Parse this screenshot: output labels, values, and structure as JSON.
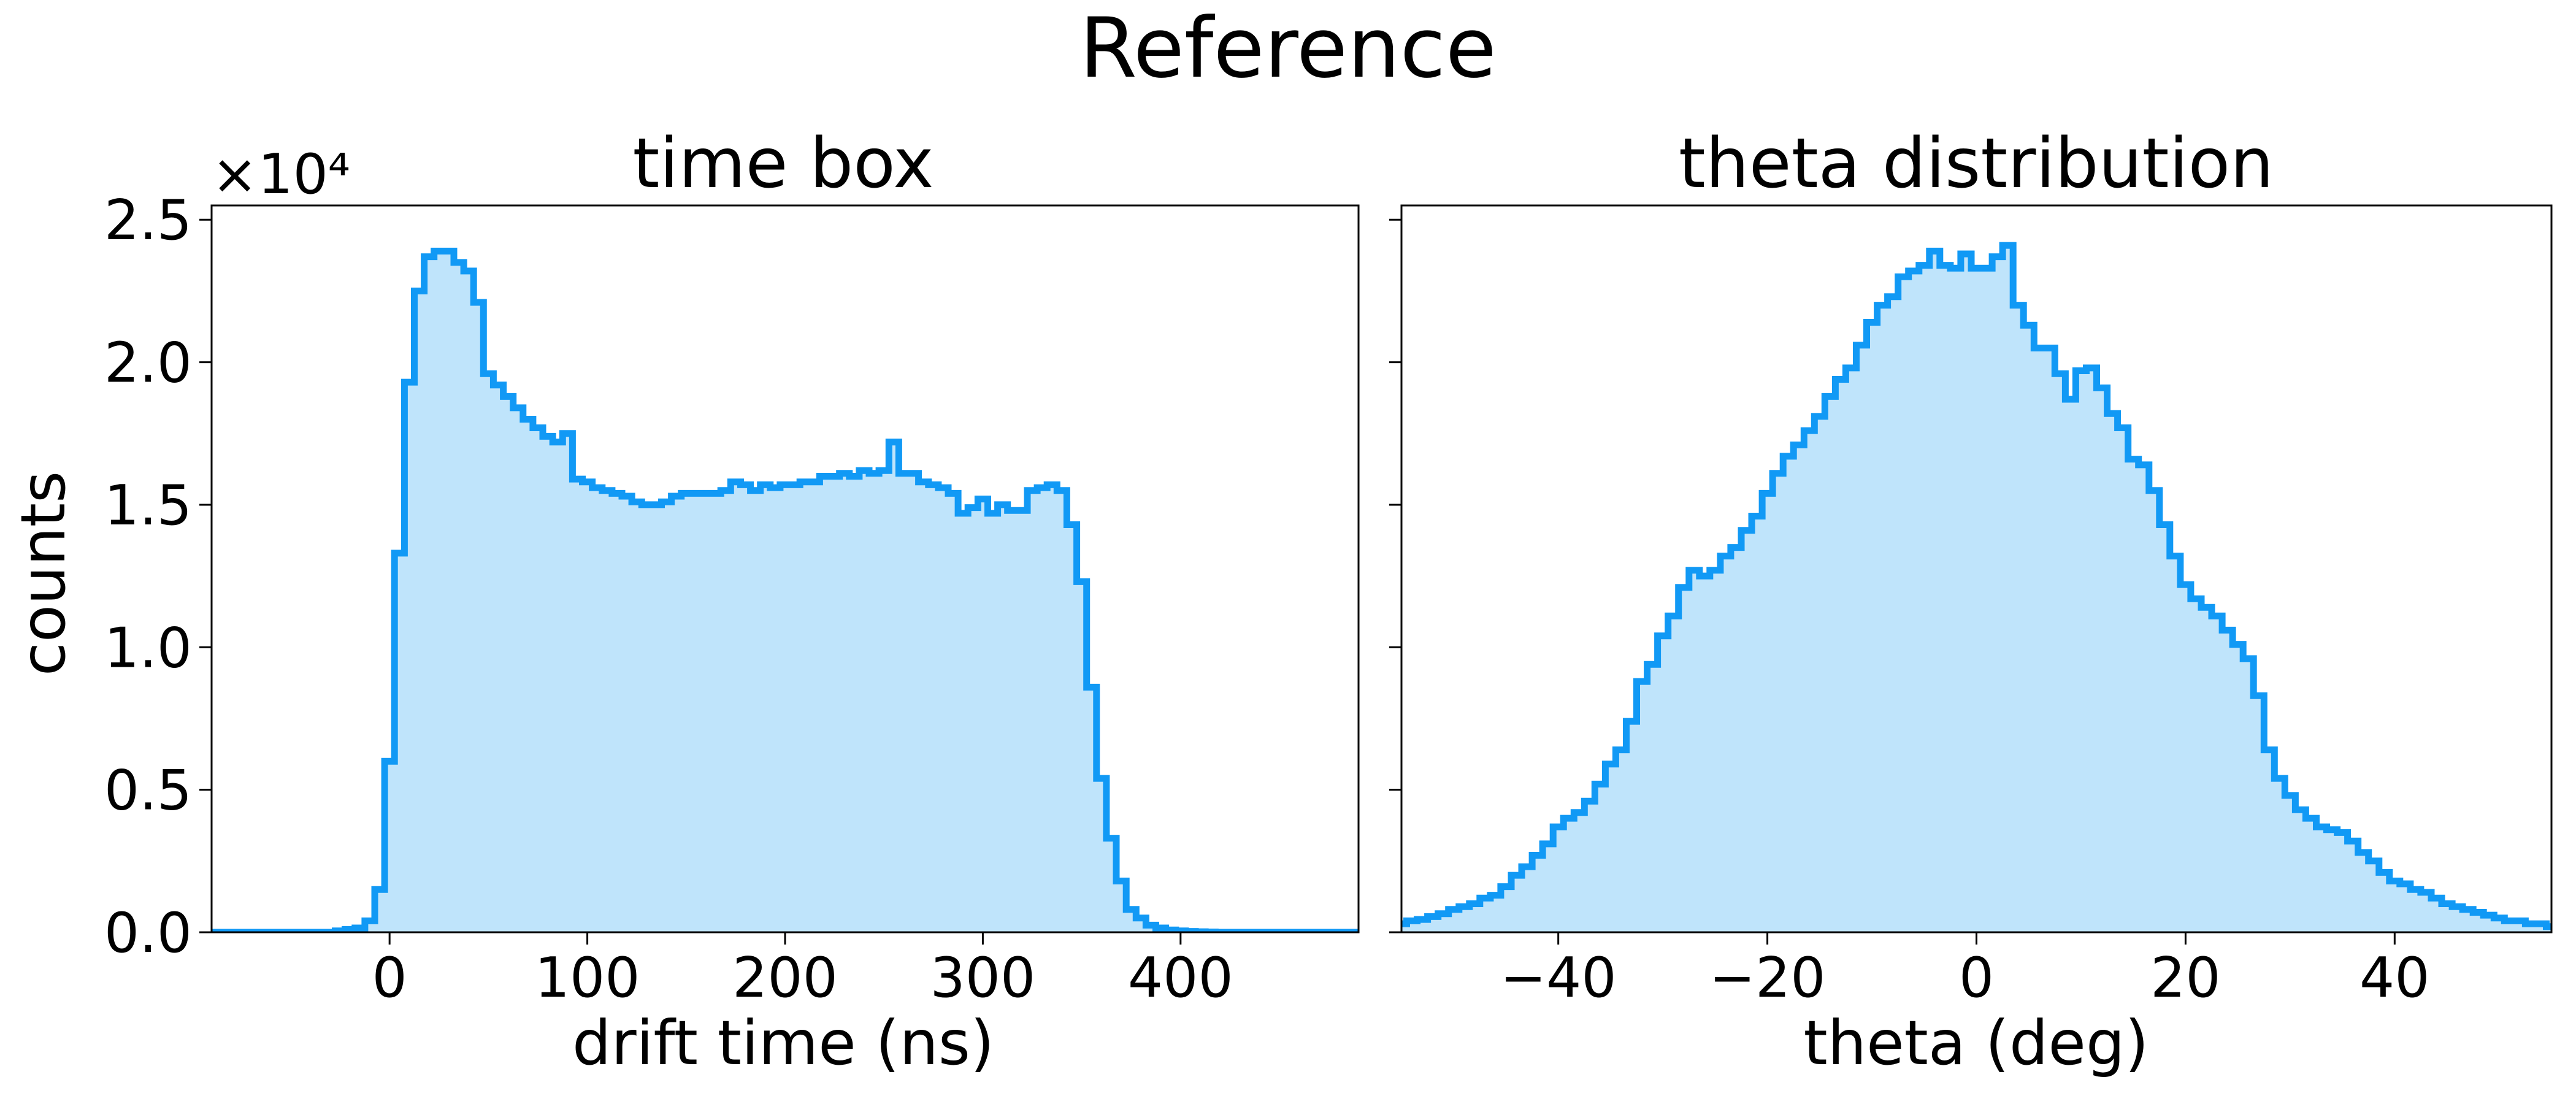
{
  "figure": {
    "suptitle": "Reference"
  },
  "colors": {
    "line": "#1199f5",
    "fill": "#bfe4fb",
    "axes": "#000000",
    "background": "#ffffff"
  },
  "chart_data": [
    {
      "type": "area",
      "title": "time box",
      "xlabel": "drift time (ns)",
      "ylabel": "counts",
      "offset_text": "×10⁴",
      "xlim": [
        -90,
        490
      ],
      "ylim": [
        0,
        25500
      ],
      "xticks": [
        0,
        100,
        200,
        300,
        400
      ],
      "xtick_labels": [
        "0",
        "100",
        "200",
        "300",
        "400"
      ],
      "yticks": [
        0,
        5000,
        10000,
        15000,
        20000,
        25000
      ],
      "ytick_labels": [
        "0.0",
        "0.5",
        "1.0",
        "1.5",
        "2.0",
        "2.5"
      ],
      "grid": false,
      "legend": false,
      "step": "mid",
      "bin_width": 5,
      "x": [
        -90,
        -85,
        -80,
        -75,
        -70,
        -65,
        -60,
        -55,
        -50,
        -45,
        -40,
        -35,
        -30,
        -25,
        -20,
        -15,
        -10,
        -5,
        0,
        5,
        10,
        15,
        20,
        25,
        30,
        35,
        40,
        45,
        50,
        55,
        60,
        65,
        70,
        75,
        80,
        85,
        90,
        95,
        100,
        105,
        110,
        115,
        120,
        125,
        130,
        135,
        140,
        145,
        150,
        155,
        160,
        165,
        170,
        175,
        180,
        185,
        190,
        195,
        200,
        205,
        210,
        215,
        220,
        225,
        230,
        235,
        240,
        245,
        250,
        255,
        260,
        265,
        270,
        275,
        280,
        285,
        290,
        295,
        300,
        305,
        310,
        315,
        320,
        325,
        330,
        335,
        340,
        345,
        350,
        355,
        360,
        365,
        370,
        375,
        380,
        385,
        390,
        395,
        400,
        405,
        410,
        415,
        420,
        425,
        430,
        435,
        440,
        445,
        450,
        455,
        460,
        465,
        470,
        475,
        480,
        485,
        490
      ],
      "y": [
        0,
        0,
        0,
        0,
        0,
        0,
        0,
        0,
        0,
        0,
        0,
        0,
        0,
        50,
        100,
        150,
        400,
        1500,
        6000,
        13300,
        19300,
        22500,
        23700,
        23900,
        23900,
        23500,
        23200,
        22100,
        19600,
        19200,
        18800,
        18400,
        18000,
        17700,
        17400,
        17200,
        17500,
        15900,
        15800,
        15600,
        15500,
        15400,
        15300,
        15100,
        15000,
        15000,
        15100,
        15300,
        15400,
        15400,
        15400,
        15400,
        15500,
        15800,
        15700,
        15500,
        15700,
        15600,
        15700,
        15700,
        15800,
        15800,
        16000,
        16000,
        16100,
        16000,
        16200,
        16100,
        16200,
        17200,
        16100,
        16100,
        15800,
        15700,
        15600,
        15400,
        14700,
        14900,
        15200,
        14700,
        15000,
        14800,
        14800,
        15500,
        15600,
        15700,
        15500,
        14300,
        12300,
        8600,
        5400,
        3300,
        1800,
        800,
        500,
        250,
        150,
        80,
        50,
        30,
        20,
        10,
        0,
        0,
        0,
        0,
        0,
        0,
        0,
        0,
        0,
        0,
        0,
        0,
        0,
        0,
        0
      ]
    },
    {
      "type": "area",
      "title": "theta distribution",
      "xlabel": "theta (deg)",
      "ylabel": "",
      "xlim": [
        -55,
        55
      ],
      "ylim": [
        0,
        25500
      ],
      "xticks": [
        -40,
        -20,
        0,
        20,
        40
      ],
      "xtick_labels": [
        "−40",
        "−20",
        "0",
        "20",
        "40"
      ],
      "yticks": [
        0,
        5000,
        10000,
        15000,
        20000,
        25000
      ],
      "ytick_labels": [
        "",
        "",
        "",
        "",
        "",
        ""
      ],
      "grid": false,
      "legend": false,
      "step": "mid",
      "bin_width": 1,
      "x": [
        -55,
        -54,
        -53,
        -52,
        -51,
        -50,
        -49,
        -48,
        -47,
        -46,
        -45,
        -44,
        -43,
        -42,
        -41,
        -40,
        -39,
        -38,
        -37,
        -36,
        -35,
        -34,
        -33,
        -32,
        -31,
        -30,
        -29,
        -28,
        -27,
        -26,
        -25,
        -24,
        -23,
        -22,
        -21,
        -20,
        -19,
        -18,
        -17,
        -16,
        -15,
        -14,
        -13,
        -12,
        -11,
        -10,
        -9,
        -8,
        -7,
        -6,
        -5,
        -4,
        -3,
        -2,
        -1,
        0,
        1,
        2,
        3,
        4,
        5,
        6,
        7,
        8,
        9,
        10,
        11,
        12,
        13,
        14,
        15,
        16,
        17,
        18,
        19,
        20,
        21,
        22,
        23,
        24,
        25,
        26,
        27,
        28,
        29,
        30,
        31,
        32,
        33,
        34,
        35,
        36,
        37,
        38,
        39,
        40,
        41,
        42,
        43,
        44,
        45,
        46,
        47,
        48,
        49,
        50,
        51,
        52,
        53,
        54,
        55
      ],
      "y": [
        300,
        400,
        450,
        550,
        650,
        800,
        900,
        1000,
        1200,
        1300,
        1600,
        2000,
        2300,
        2700,
        3100,
        3700,
        4000,
        4200,
        4600,
        5200,
        5900,
        6400,
        7400,
        8800,
        9400,
        10400,
        11100,
        12100,
        12700,
        12500,
        12700,
        13200,
        13500,
        14100,
        14600,
        15400,
        16100,
        16700,
        17100,
        17600,
        18100,
        18800,
        19400,
        19800,
        20600,
        21400,
        22000,
        22300,
        23000,
        23200,
        23400,
        23900,
        23400,
        23300,
        23800,
        23300,
        23300,
        23700,
        24100,
        22000,
        21300,
        20500,
        20500,
        19600,
        18700,
        19700,
        19800,
        19100,
        18200,
        17700,
        16600,
        16400,
        15500,
        14300,
        13200,
        12200,
        11700,
        11400,
        11100,
        10600,
        10100,
        9600,
        8300,
        6400,
        5400,
        4800,
        4300,
        4000,
        3700,
        3600,
        3500,
        3200,
        2800,
        2500,
        2100,
        1800,
        1700,
        1500,
        1400,
        1200,
        1000,
        900,
        800,
        700,
        600,
        500,
        400,
        400,
        300,
        300,
        200
      ]
    }
  ]
}
